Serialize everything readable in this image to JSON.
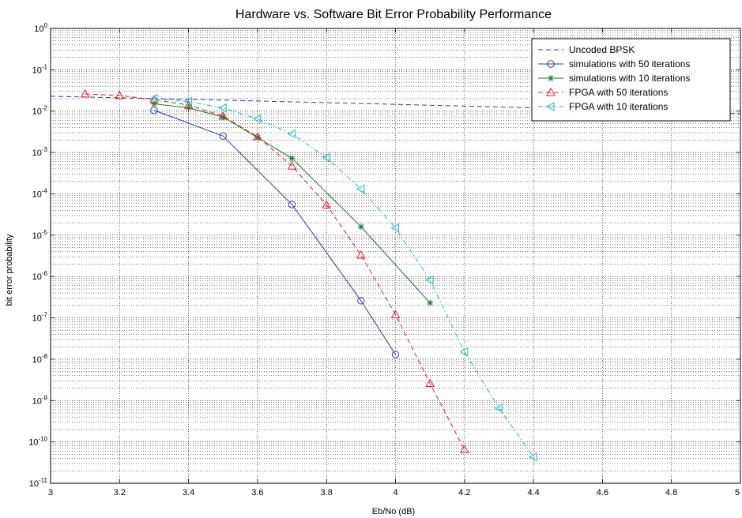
{
  "chart_data": {
    "type": "line",
    "title": "Hardware vs. Software Bit Error Probability Performance",
    "xlabel": "Eb/No (dB)",
    "ylabel": "bit error probability",
    "xlim": [
      3,
      5
    ],
    "ylim": [
      1e-11,
      1
    ],
    "yscale": "log",
    "grid": true,
    "legend_position": "top-right",
    "x_ticks": [
      {
        "value": 3,
        "label": "3"
      },
      {
        "value": 3.2,
        "label": "3.2"
      },
      {
        "value": 3.4,
        "label": "3.4"
      },
      {
        "value": 3.6,
        "label": "3.6"
      },
      {
        "value": 3.8,
        "label": "3.8"
      },
      {
        "value": 4,
        "label": "4"
      },
      {
        "value": 4.2,
        "label": "4.2"
      },
      {
        "value": 4.4,
        "label": "4.4"
      },
      {
        "value": 4.6,
        "label": "4.6"
      },
      {
        "value": 4.8,
        "label": "4.8"
      },
      {
        "value": 5,
        "label": "5"
      }
    ],
    "y_ticks": [
      {
        "exp": 0,
        "base": "10",
        "sup": "0"
      },
      {
        "exp": -1,
        "base": "10",
        "sup": "-1"
      },
      {
        "exp": -2,
        "base": "10",
        "sup": "-2"
      },
      {
        "exp": -3,
        "base": "10",
        "sup": "-3"
      },
      {
        "exp": -4,
        "base": "10",
        "sup": "-4"
      },
      {
        "exp": -5,
        "base": "10",
        "sup": "-5"
      },
      {
        "exp": -6,
        "base": "10",
        "sup": "-6"
      },
      {
        "exp": -7,
        "base": "10",
        "sup": "-7"
      },
      {
        "exp": -8,
        "base": "10",
        "sup": "-8"
      },
      {
        "exp": -9,
        "base": "10",
        "sup": "-9"
      },
      {
        "exp": -10,
        "base": "10",
        "sup": "-10"
      },
      {
        "exp": -11,
        "base": "10",
        "sup": "-11"
      }
    ],
    "series": [
      {
        "name": "Uncoded BPSK",
        "color": "#2b3fa6",
        "dash": "dashed",
        "marker": "none",
        "x": [
          3,
          3.2,
          3.4,
          3.6,
          3.8,
          4,
          4.2,
          4.4,
          4.6,
          4.8,
          5
        ],
        "y": [
          0.0229,
          0.021,
          0.0193,
          0.0176,
          0.016,
          0.0146,
          0.0132,
          0.012,
          0.0108,
          0.0097,
          0.0087
        ]
      },
      {
        "name": "simulations with 50 iterations",
        "color": "#2b3fa6",
        "dash": "solid",
        "marker": "circle",
        "x": [
          3.3,
          3.5,
          3.7,
          3.9,
          4.0
        ],
        "y": [
          0.0105,
          0.0025,
          5.5e-05,
          2.6e-07,
          1.3e-08
        ]
      },
      {
        "name": "simulations with 10 iterations",
        "color": "#157a2c",
        "dash": "solid",
        "marker": "star",
        "x": [
          3.3,
          3.4,
          3.5,
          3.6,
          3.7,
          3.9,
          4.1
        ],
        "y": [
          0.015,
          0.012,
          0.0072,
          0.0023,
          0.00072,
          1.6e-05,
          2.3e-07
        ]
      },
      {
        "name": "FPGA with 50 iterations",
        "color": "#e02020",
        "dash": "dashed",
        "marker": "triangle-up",
        "x": [
          3.1,
          3.2,
          3.3,
          3.4,
          3.5,
          3.6,
          3.7,
          3.8,
          3.9,
          4.0,
          4.1,
          4.2
        ],
        "y": [
          0.026,
          0.024,
          0.019,
          0.014,
          0.0076,
          0.0024,
          0.00047,
          5.4e-05,
          3.3e-06,
          1.2e-07,
          2.6e-09,
          6.5e-11
        ]
      },
      {
        "name": "FPGA with 10 iterations",
        "color": "#1fb8bf",
        "dash": "dashdot",
        "marker": "triangle-left",
        "x": [
          3.3,
          3.4,
          3.5,
          3.6,
          3.7,
          3.8,
          3.9,
          4.0,
          4.1,
          4.2,
          4.3,
          4.4
        ],
        "y": [
          0.02,
          0.017,
          0.012,
          0.0065,
          0.0028,
          0.00075,
          0.00013,
          1.5e-05,
          8.3e-07,
          1.5e-08,
          6.6e-10,
          4.3e-11
        ]
      }
    ]
  }
}
